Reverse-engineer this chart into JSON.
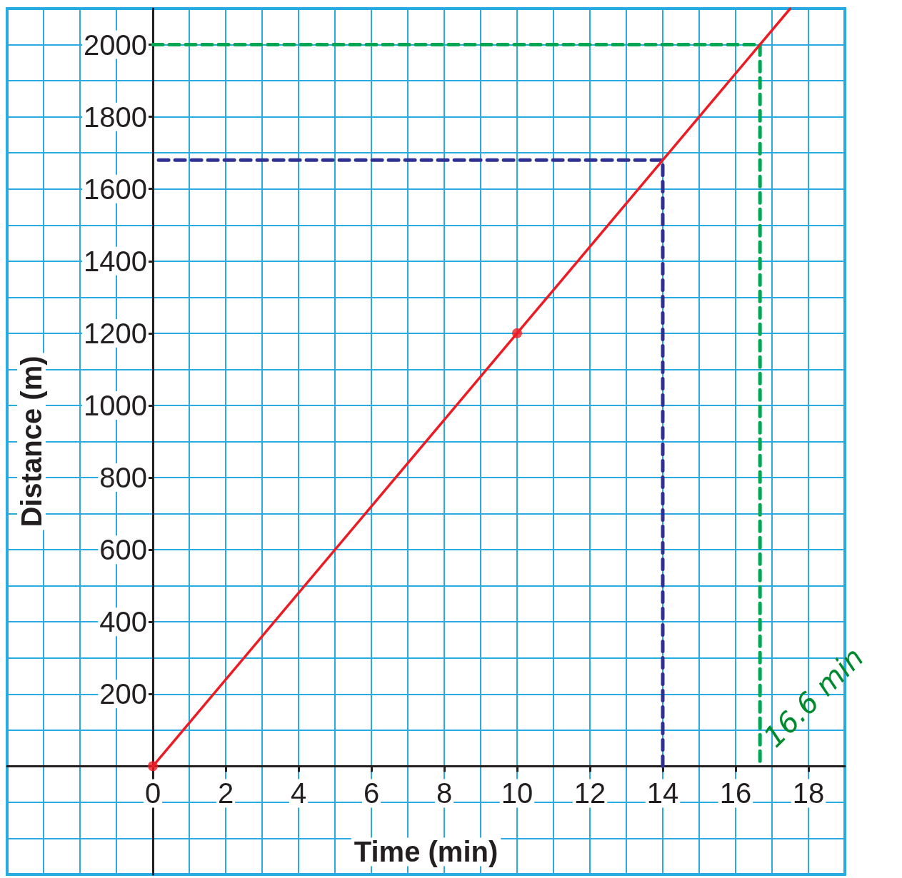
{
  "chart_data": {
    "type": "line",
    "xlabel": "Time (min)",
    "ylabel": "Distance (m)",
    "xlim": [
      -4,
      19
    ],
    "ylim": [
      -300,
      2100
    ],
    "xticks": [
      0,
      2,
      4,
      6,
      8,
      10,
      12,
      14,
      16,
      18
    ],
    "yticks": [
      200,
      400,
      600,
      800,
      1000,
      1200,
      1400,
      1600,
      1800,
      2000
    ],
    "grid": true,
    "series": [
      {
        "color": "#ed1c24",
        "x": [
          0,
          17.5
        ],
        "values": [
          0,
          2100
        ],
        "marker": "none",
        "line_style": "solid"
      },
      {
        "type": "scatter",
        "color": "#ed1c24",
        "x": [
          0,
          10
        ],
        "values": [
          0,
          1200
        ],
        "marker": "circle"
      },
      {
        "color": "#2e3192",
        "x": [
          14,
          14,
          0
        ],
        "values": [
          0,
          1680,
          1680
        ],
        "marker": "none",
        "line_style": "dashed"
      },
      {
        "color": "#00a651",
        "x": [
          0,
          16.67,
          16.67
        ],
        "values": [
          2000,
          2000,
          0
        ],
        "marker": "none",
        "line_style": "dashed"
      }
    ],
    "annotations": [
      {
        "text": "16.6 min",
        "x": 16.6,
        "y": 0
      }
    ]
  }
}
